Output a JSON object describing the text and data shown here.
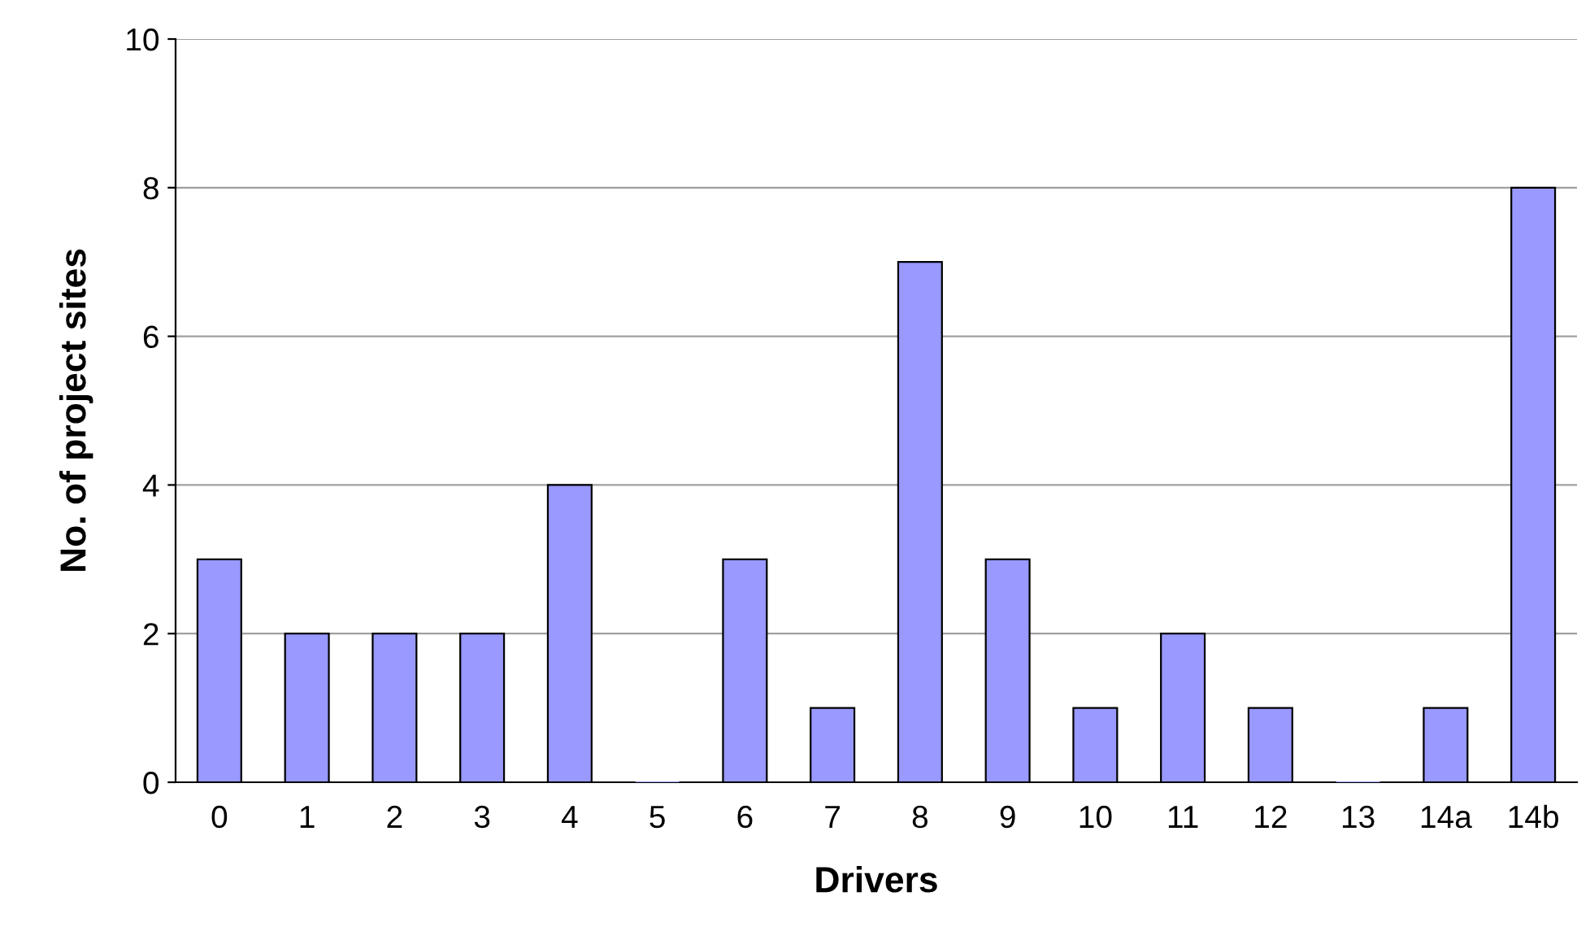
{
  "chart_data": {
    "type": "bar",
    "xlabel": "Drivers",
    "ylabel": "No. of project sites",
    "categories": [
      "0",
      "1",
      "2",
      "3",
      "4",
      "5",
      "6",
      "7",
      "8",
      "9",
      "10",
      "11",
      "12",
      "13",
      "14a",
      "14b"
    ],
    "values": [
      3,
      2,
      2,
      2,
      4,
      0,
      3,
      1,
      7,
      3,
      1,
      2,
      1,
      0,
      1,
      8
    ],
    "color": "#9999ff",
    "ylim": [
      0,
      10
    ],
    "yticks": [
      0,
      2,
      4,
      6,
      8,
      10
    ],
    "grid": "y",
    "legend": false
  }
}
